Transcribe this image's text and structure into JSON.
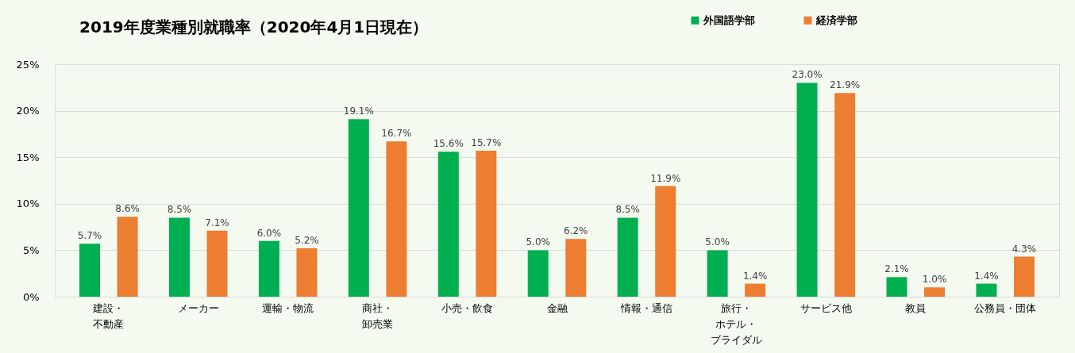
{
  "chart_data": {
    "type": "bar",
    "title": "2019年度業種別就職率（2020年4月1日現在）",
    "categories": [
      "建設・不動産",
      "メーカー",
      "運輸・物流",
      "商社・卸売業",
      "小売・飲食",
      "金融",
      "情報・通信",
      "旅行・ホテル・ブライダル",
      "サービス他",
      "教員",
      "公務員・団体"
    ],
    "series": [
      {
        "name": "外国語学部",
        "color": "#00b050",
        "values": [
          5.7,
          8.5,
          6.0,
          19.1,
          15.6,
          5.0,
          8.5,
          5.0,
          23.0,
          2.1,
          1.4
        ],
        "value_labels": [
          "5.7%",
          "8.5%",
          "6.0%",
          "19.1%",
          "15.6%",
          "5.0%",
          "8.5%",
          "5.0%",
          "23.0%",
          "2.1%",
          "1.4%"
        ]
      },
      {
        "name": "経済学部",
        "color": "#ed7d31",
        "values": [
          8.6,
          7.1,
          5.2,
          16.7,
          15.7,
          6.2,
          11.9,
          1.4,
          21.9,
          1.0,
          4.3
        ],
        "value_labels": [
          "8.6%",
          "7.1%",
          "5.2%",
          "16.7%",
          "15.7%",
          "6.2%",
          "11.9%",
          "1.4%",
          "21.9%",
          "1.0%",
          "4.3%"
        ]
      }
    ],
    "ylim": [
      0,
      25
    ],
    "yticks": [
      {
        "value": 0,
        "label": "0%"
      },
      {
        "value": 5,
        "label": "5%"
      },
      {
        "value": 10,
        "label": "10%"
      },
      {
        "value": 15,
        "label": "15%"
      },
      {
        "value": 20,
        "label": "20%"
      },
      {
        "value": 25,
        "label": "25%"
      }
    ],
    "grid": "y",
    "legend": "top right"
  }
}
